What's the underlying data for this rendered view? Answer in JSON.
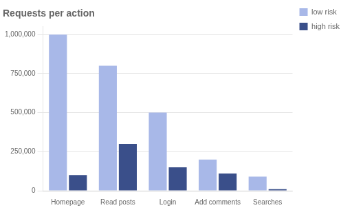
{
  "chart_data": {
    "type": "bar",
    "title": "Requests per action",
    "categories": [
      "Homepage",
      "Read posts",
      "Login",
      "Add comments",
      "Searches"
    ],
    "series": [
      {
        "name": "low risk",
        "color": "#A8B8E8",
        "values": [
          1000000,
          800000,
          500000,
          200000,
          90000
        ]
      },
      {
        "name": "high risk",
        "color": "#3A4F8A",
        "values": [
          100000,
          300000,
          150000,
          110000,
          10000
        ]
      }
    ],
    "ylim": [
      0,
      1050000
    ],
    "yticks": [
      0,
      {
        "value": 250000,
        "label": "250,000"
      },
      {
        "value": 500000,
        "label": "500,000"
      },
      {
        "value": 750000,
        "label": "750,000"
      },
      {
        "value": 1000000,
        "label": "1,000,000"
      }
    ],
    "grid": true,
    "legend": "right"
  }
}
